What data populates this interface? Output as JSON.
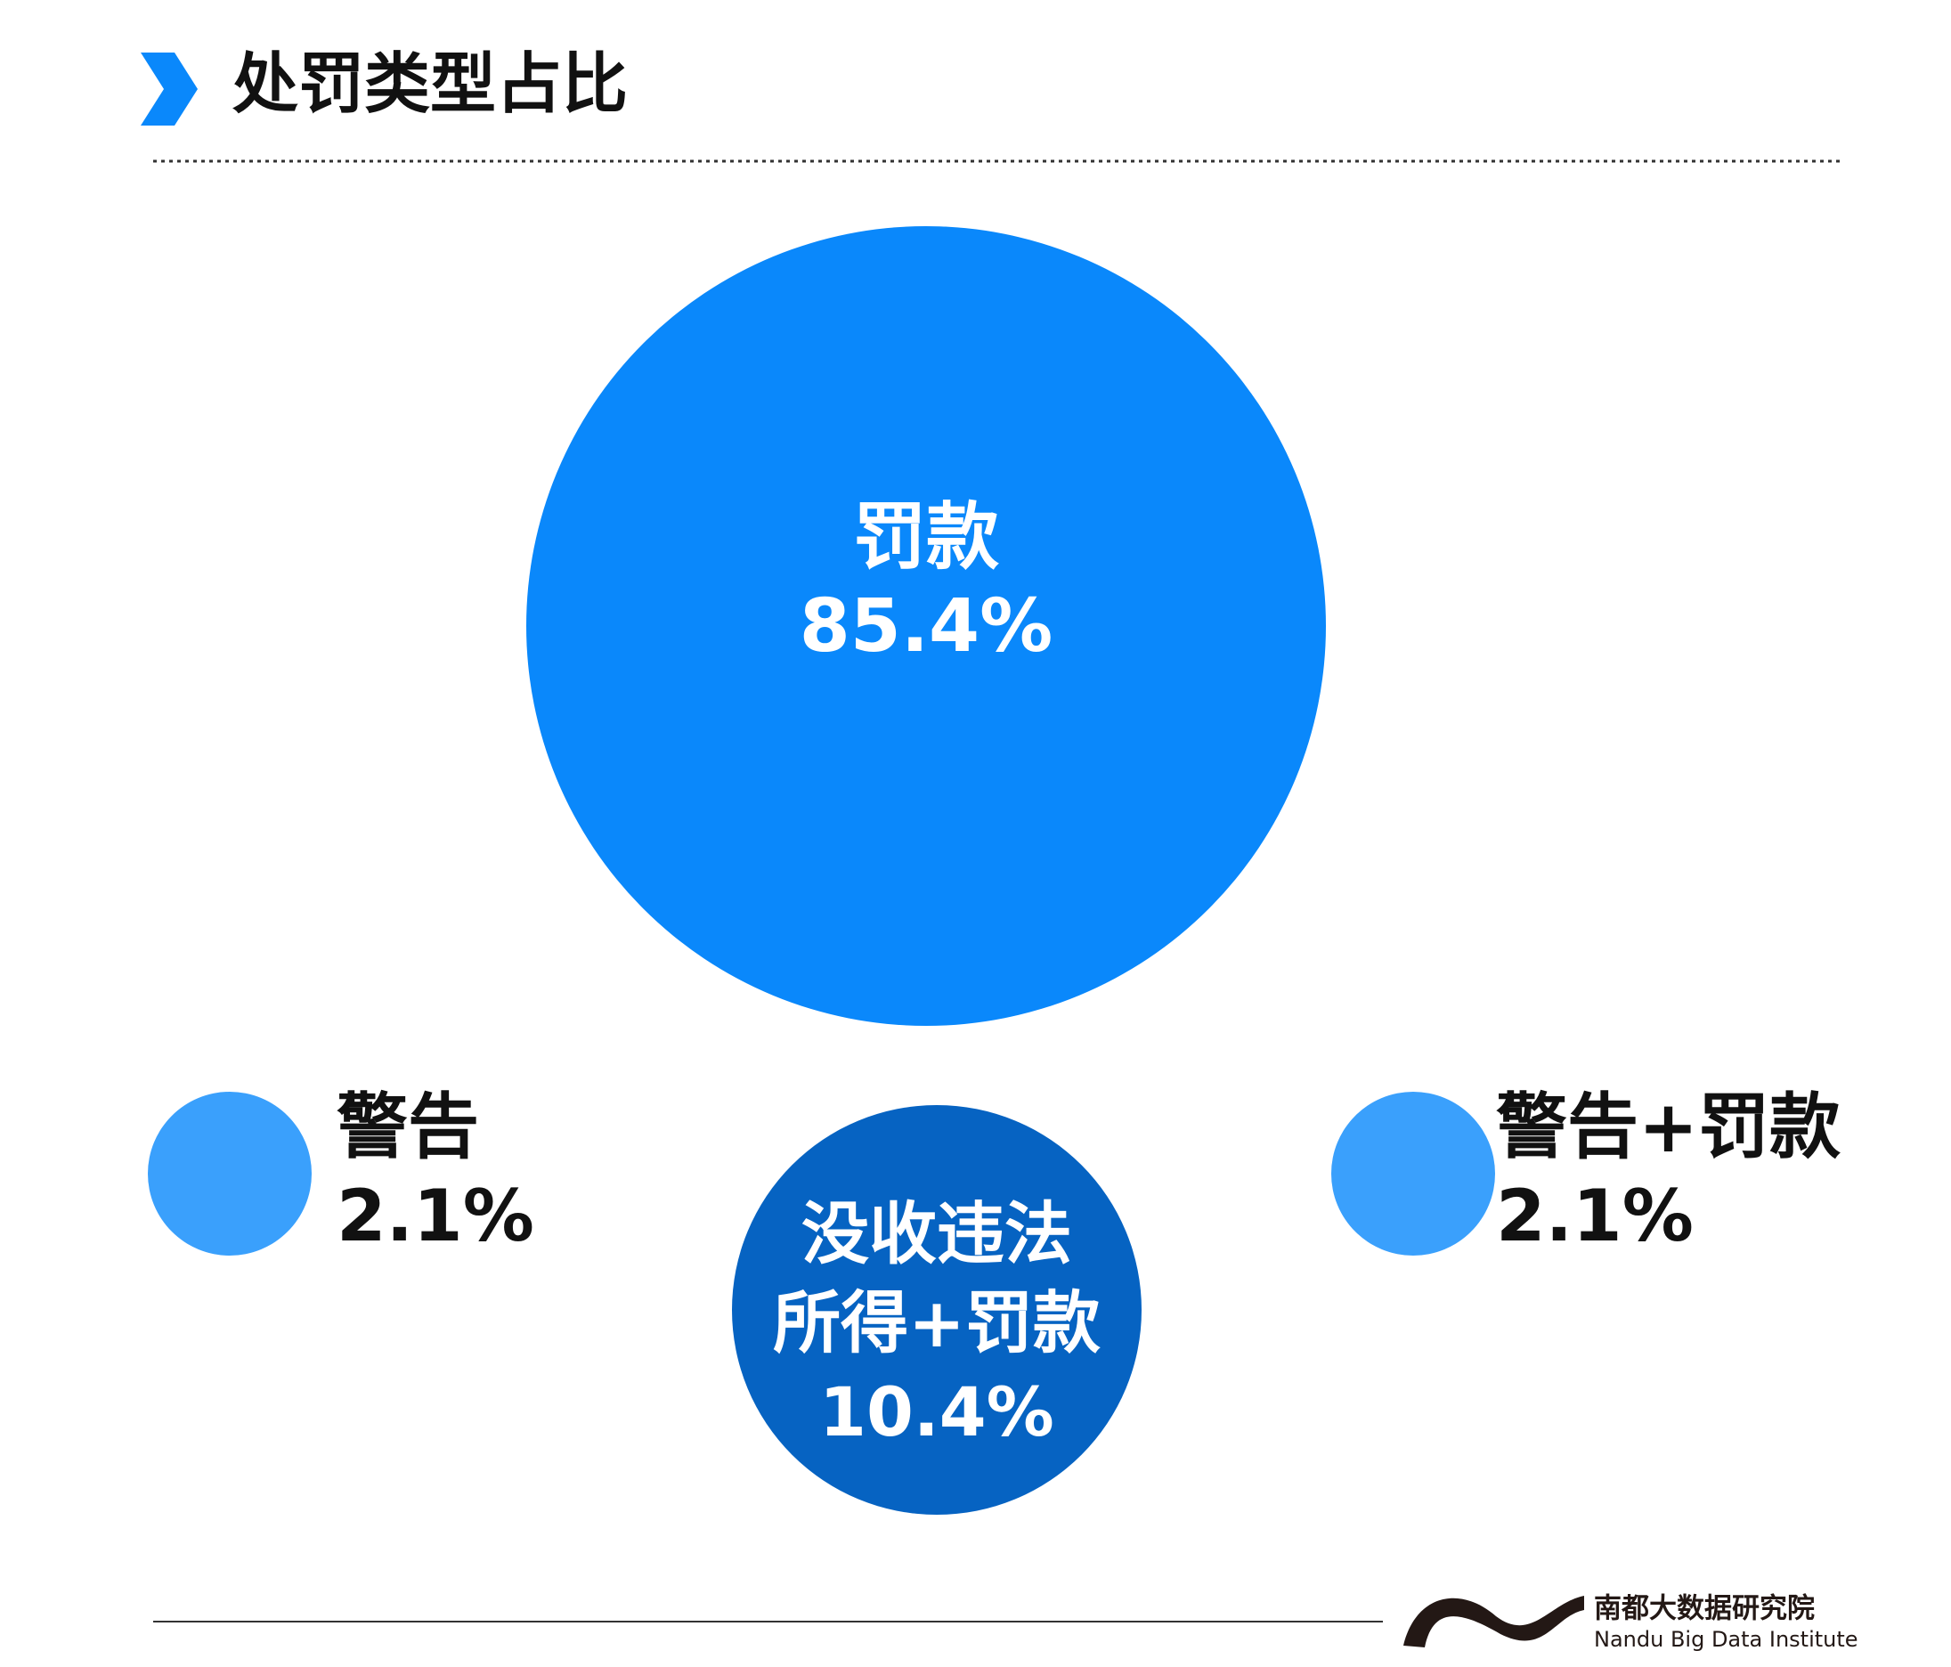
{
  "chart_data": {
    "type": "bubble",
    "title": "处罚类型占比",
    "categories": [
      "罚款",
      "没收违法所得+罚款",
      "警告",
      "警告+罚款"
    ],
    "values": [
      85.4,
      10.4,
      2.1,
      2.1
    ],
    "value_labels": [
      "85.4%",
      "10.4%",
      "2.1%",
      "2.1%"
    ],
    "colors": [
      "#0a88fb",
      "#0663c2",
      "#3aa0fc",
      "#3aa0fc"
    ]
  },
  "footer": {
    "org_name": "南都大数据研究院",
    "org_name_en": "Nandu Big Data Institute"
  }
}
